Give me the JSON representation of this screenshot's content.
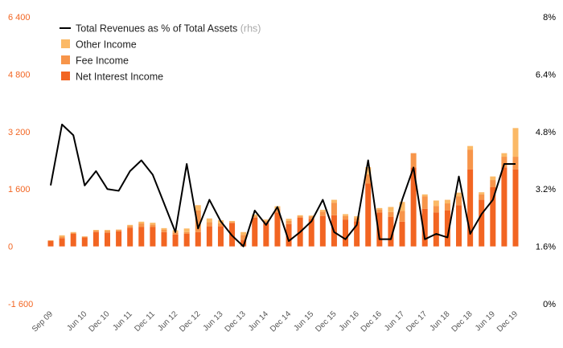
{
  "chart_data": {
    "type": "bar",
    "stacked": true,
    "categories": [
      "Sep 09",
      "Dec 09",
      "Mar 10",
      "Jun 10",
      "Sep 10",
      "Dec 10",
      "Mar 11",
      "Jun 11",
      "Sep 11",
      "Dec 11",
      "Mar 12",
      "Jun 12",
      "Sep 12",
      "Dec 12",
      "Mar 13",
      "Jun 13",
      "Sep 13",
      "Dec 13",
      "Mar 14",
      "Jun 14",
      "Sep 14",
      "Dec 14",
      "Mar 15",
      "Jun 15",
      "Sep 15",
      "Dec 15",
      "Mar 16",
      "Jun 16",
      "Sep 16",
      "Dec 16",
      "Mar 17",
      "Jun 17",
      "Sep 17",
      "Dec 17",
      "Mar 18",
      "Jun 18",
      "Sep 18",
      "Dec 18",
      "Mar 19",
      "Jun 19",
      "Sep 19",
      "Dec 19"
    ],
    "x_tick_labels": [
      "Sep 09",
      "Jun 10",
      "Dec 10",
      "Jun 11",
      "Dec 11",
      "Jun 12",
      "Dec 12",
      "Jun 13",
      "Dec 13",
      "Jun 14",
      "Dec 14",
      "Jun 15",
      "Dec 15",
      "Jun 16",
      "Dec 16",
      "Jun 17",
      "Dec 17",
      "Jun 18",
      "Dec 18",
      "Jun 19",
      "Dec 19"
    ],
    "series": [
      {
        "name": "Net Interest Income",
        "color": "#f26522",
        "axis": "left",
        "values": [
          150,
          230,
          350,
          250,
          400,
          380,
          420,
          520,
          540,
          540,
          400,
          330,
          350,
          400,
          560,
          560,
          650,
          180,
          800,
          650,
          950,
          620,
          800,
          770,
          850,
          870,
          750,
          700,
          1750,
          950,
          820,
          690,
          2200,
          1050,
          950,
          1000,
          1150,
          2150,
          1300,
          1650,
          2200,
          2150
        ]
      },
      {
        "name": "Fee Income",
        "color": "#f7954a",
        "axis": "left",
        "values": [
          20,
          40,
          30,
          20,
          40,
          50,
          40,
          50,
          100,
          70,
          70,
          60,
          50,
          600,
          120,
          80,
          30,
          140,
          40,
          60,
          110,
          90,
          40,
          70,
          120,
          350,
          100,
          90,
          260,
          80,
          140,
          300,
          400,
          350,
          180,
          200,
          250,
          550,
          150,
          200,
          300,
          350
        ]
      },
      {
        "name": "Other Income",
        "color": "#fbb966",
        "axis": "left",
        "values": [
          0,
          40,
          20,
          10,
          20,
          30,
          10,
          30,
          50,
          50,
          40,
          60,
          100,
          150,
          100,
          90,
          30,
          80,
          50,
          40,
          60,
          60,
          30,
          20,
          50,
          80,
          50,
          50,
          200,
          40,
          140,
          250,
          0,
          50,
          150,
          100,
          100,
          100,
          60,
          100,
          100,
          800
        ]
      },
      {
        "name": "Total Revenues as % of Total Assets (rhs)",
        "color": "#000000",
        "axis": "right",
        "type": "line",
        "values": [
          3.3,
          5.0,
          4.7,
          3.3,
          3.7,
          3.2,
          3.15,
          3.7,
          4.0,
          3.6,
          2.8,
          2.0,
          3.9,
          2.1,
          2.9,
          2.3,
          1.9,
          1.6,
          2.6,
          2.2,
          2.7,
          1.75,
          2.0,
          2.3,
          2.9,
          2.0,
          1.8,
          2.2,
          4.0,
          1.8,
          1.8,
          2.9,
          3.8,
          1.8,
          1.95,
          1.85,
          3.55,
          1.95,
          2.5,
          2.9,
          3.9,
          3.9
        ]
      }
    ],
    "ylim": [
      -1600,
      6400
    ],
    "y_ticks": [
      "6 400",
      "4 800",
      "3 200",
      "1 600",
      "0",
      "-1 600"
    ],
    "y_tick_values": [
      6400,
      4800,
      3200,
      1600,
      0,
      -1600
    ],
    "y2lim": [
      0,
      8
    ],
    "y2_ticks": [
      "8%",
      "6.4%",
      "4.8%",
      "3.2%",
      "1.6%",
      "0%"
    ],
    "y2_tick_values": [
      8,
      6.4,
      4.8,
      3.2,
      1.6,
      0
    ],
    "legend": {
      "placement": "top-left",
      "line_label": "Total Revenues as % of Total Assets",
      "line_suffix": "(rhs)",
      "items": [
        "Other Income",
        "Fee Income",
        "Net Interest Income"
      ]
    },
    "grid": false,
    "title": "",
    "xlabel": "",
    "ylabel": ""
  }
}
